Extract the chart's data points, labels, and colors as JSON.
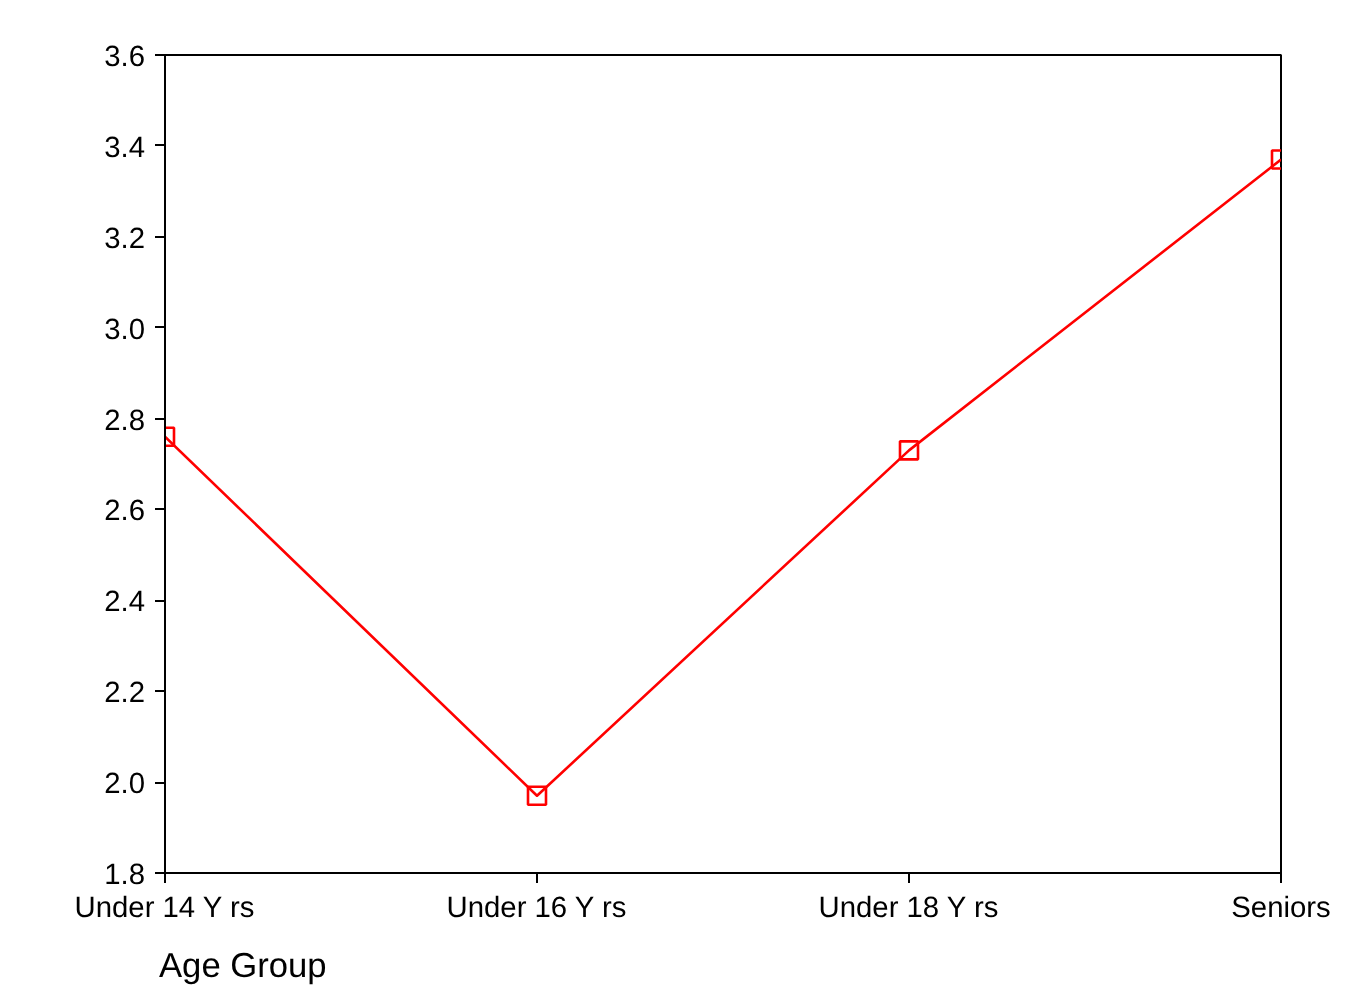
{
  "chart_data": {
    "type": "line",
    "xlabel": "Age Group",
    "categories": [
      "Under 14 Y rs",
      "Under 16 Y rs",
      "Under 18 Y rs",
      "Seniors"
    ],
    "series": [
      {
        "color": "#ff0000",
        "values": [
          2.76,
          1.97,
          2.73,
          3.37
        ]
      }
    ],
    "ylim": [
      1.8,
      3.6
    ],
    "yticks": [
      1.8,
      {
        "value": 2,
        "label": "2.0"
      },
      2.2,
      2.4,
      2.6,
      2.8,
      {
        "value": 3,
        "label": "3.0"
      },
      3.2,
      3.4,
      3.6
    ],
    "marker": "square",
    "line_style": "solid",
    "grid": false
  }
}
